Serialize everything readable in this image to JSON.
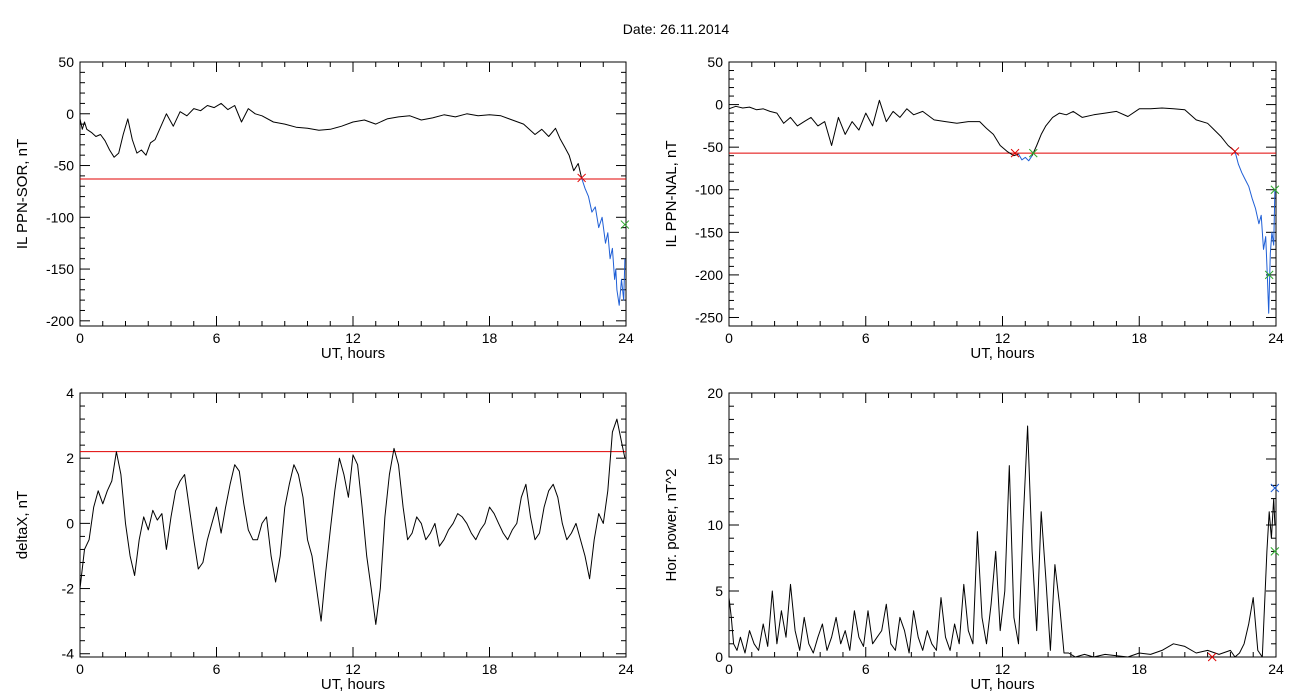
{
  "figure": {
    "title": "Date:  26.11.2014"
  },
  "chart_data": [
    {
      "id": "il-sor",
      "type": "line",
      "xlabel": "UT, hours",
      "ylabel": "IL PPN-SOR, nT",
      "xlim": [
        0,
        24
      ],
      "ylim": [
        -205,
        50
      ],
      "xticks": [
        0,
        6,
        12,
        18,
        24
      ],
      "yticks": [
        -200,
        -150,
        -100,
        -50,
        0,
        50
      ],
      "threshold": {
        "value": -63,
        "color": "#e00000"
      },
      "series": [
        {
          "color": "#000000",
          "x": [
            0,
            0.1,
            0.2,
            0.3,
            0.5,
            0.7,
            0.9,
            1.1,
            1.3,
            1.5,
            1.7,
            1.9,
            2.1,
            2.3,
            2.5,
            2.7,
            2.9,
            3.1,
            3.3,
            3.5,
            3.8,
            4.1,
            4.4,
            4.7,
            5,
            5.3,
            5.6,
            5.9,
            6.2,
            6.5,
            6.8,
            7.1,
            7.4,
            7.7,
            8,
            8.5,
            9,
            9.5,
            10,
            10.5,
            11,
            11.5,
            12,
            12.5,
            13,
            13.5,
            14,
            14.5,
            15,
            15.5,
            16,
            16.5,
            17,
            17.5,
            18,
            18.5,
            19,
            19.5,
            20,
            20.3,
            20.6,
            20.9,
            21.1,
            21.3,
            21.5,
            21.7,
            21.9,
            22.05
          ],
          "y": [
            -5,
            -15,
            -8,
            -15,
            -18,
            -22,
            -20,
            -26,
            -35,
            -42,
            -38,
            -20,
            -5,
            -25,
            -38,
            -35,
            -40,
            -28,
            -25,
            -15,
            0,
            -12,
            2,
            -2,
            5,
            3,
            8,
            6,
            10,
            4,
            8,
            -8,
            5,
            0,
            -2,
            -8,
            -10,
            -13,
            -14,
            -16,
            -15,
            -12,
            -8,
            -6,
            -10,
            -5,
            -3,
            -2,
            -6,
            -4,
            -1,
            -3,
            0,
            -2,
            -1,
            -2,
            -6,
            -10,
            -20,
            -15,
            -22,
            -14,
            -24,
            -32,
            -40,
            -55,
            -48,
            -62
          ]
        },
        {
          "color": "#1f5fd6",
          "x": [
            22.05,
            22.2,
            22.35,
            22.5,
            22.65,
            22.8,
            22.95,
            23.1,
            23.2,
            23.3,
            23.4,
            23.5,
            23.55,
            23.6,
            23.7,
            23.8,
            23.9,
            23.95
          ],
          "y": [
            -62,
            -72,
            -80,
            -95,
            -90,
            -110,
            -100,
            -125,
            -115,
            -140,
            -130,
            -160,
            -150,
            -170,
            -185,
            -160,
            -180,
            -140
          ]
        }
      ],
      "markers": [
        {
          "x": 22.05,
          "y": -62,
          "color": "#e00000"
        },
        {
          "x": 23.95,
          "y": -107,
          "color": "#2ea82e"
        }
      ]
    },
    {
      "id": "il-nal",
      "type": "line",
      "xlabel": "UT, hours",
      "ylabel": "IL PPN-NAL, nT",
      "xlim": [
        0,
        24
      ],
      "ylim": [
        -260,
        50
      ],
      "xticks": [
        0,
        6,
        12,
        18,
        24
      ],
      "yticks": [
        -250,
        -200,
        -150,
        -100,
        -50,
        0,
        50
      ],
      "threshold": {
        "value": -57,
        "color": "#e00000"
      },
      "series": [
        {
          "color": "#000000",
          "x": [
            0,
            0.3,
            0.6,
            0.9,
            1.2,
            1.5,
            1.8,
            2.1,
            2.4,
            2.7,
            3,
            3.3,
            3.6,
            3.9,
            4.2,
            4.5,
            4.8,
            5.1,
            5.4,
            5.7,
            6,
            6.3,
            6.6,
            6.9,
            7.2,
            7.5,
            7.8,
            8.1,
            8.5,
            9,
            9.5,
            10,
            10.5,
            11,
            11.3,
            11.6,
            11.9,
            12.2,
            12.5,
            12.7
          ],
          "y": [
            -5,
            -2,
            -4,
            -3,
            -6,
            -5,
            -8,
            -10,
            -22,
            -15,
            -25,
            -20,
            -15,
            -25,
            -20,
            -48,
            -15,
            -35,
            -20,
            -30,
            -10,
            -25,
            5,
            -20,
            -8,
            -15,
            -5,
            -12,
            -8,
            -18,
            -20,
            -22,
            -20,
            -20,
            -28,
            -35,
            -48,
            -55,
            -60,
            -58
          ]
        },
        {
          "color": "#1f5fd6",
          "x": [
            12.7,
            12.85,
            13.0,
            13.15,
            13.3
          ],
          "y": [
            -58,
            -65,
            -62,
            -66,
            -60
          ]
        },
        {
          "color": "#000000",
          "x": [
            13.3,
            13.5,
            13.7,
            13.9,
            14.2,
            14.5,
            14.8,
            15.1,
            15.5,
            16,
            16.5,
            17,
            17.5,
            18,
            18.5,
            19,
            19.5,
            20,
            20.5,
            21,
            21.3,
            21.6,
            21.9,
            22.2
          ],
          "y": [
            -60,
            -48,
            -35,
            -25,
            -15,
            -10,
            -12,
            -8,
            -15,
            -12,
            -10,
            -8,
            -14,
            -5,
            -5,
            -4,
            -5,
            -6,
            -18,
            -22,
            -30,
            -38,
            -48,
            -55
          ]
        },
        {
          "color": "#1f5fd6",
          "x": [
            22.2,
            22.35,
            22.5,
            22.65,
            22.8,
            22.95,
            23.1,
            23.25,
            23.35,
            23.45,
            23.55,
            23.62,
            23.68,
            23.75,
            23.82,
            23.9,
            23.95
          ],
          "y": [
            -55,
            -70,
            -80,
            -88,
            -96,
            -110,
            -122,
            -140,
            -130,
            -170,
            -155,
            -200,
            -245,
            -175,
            -150,
            -165,
            -100
          ]
        }
      ],
      "markers": [
        {
          "x": 12.55,
          "y": -57,
          "color": "#e00000"
        },
        {
          "x": 13.35,
          "y": -57,
          "color": "#2ea82e"
        },
        {
          "x": 22.2,
          "y": -55,
          "color": "#e00000"
        },
        {
          "x": 23.95,
          "y": -100,
          "color": "#2ea82e"
        },
        {
          "x": 23.7,
          "y": -200,
          "color": "#2ea82e"
        }
      ]
    },
    {
      "id": "deltax",
      "type": "line",
      "xlabel": "UT, hours",
      "ylabel": "deltaX, nT",
      "xlim": [
        0,
        24
      ],
      "ylim": [
        -4.1,
        4
      ],
      "xticks": [
        0,
        6,
        12,
        18,
        24
      ],
      "yticks": [
        -4,
        -2,
        0,
        2,
        4
      ],
      "threshold": {
        "value": 2.2,
        "color": "#e00000"
      },
      "series": [
        {
          "color": "#000000",
          "x": [
            0,
            0.2,
            0.4,
            0.6,
            0.8,
            1.0,
            1.2,
            1.4,
            1.6,
            1.8,
            2.0,
            2.2,
            2.4,
            2.6,
            2.8,
            3.0,
            3.2,
            3.4,
            3.6,
            3.8,
            4.0,
            4.2,
            4.4,
            4.6,
            4.8,
            5.0,
            5.2,
            5.4,
            5.6,
            5.8,
            6.0,
            6.2,
            6.4,
            6.6,
            6.8,
            7.0,
            7.2,
            7.4,
            7.6,
            7.8,
            8.0,
            8.2,
            8.4,
            8.6,
            8.8,
            9.0,
            9.2,
            9.4,
            9.6,
            9.8,
            10.0,
            10.2,
            10.4,
            10.6,
            10.8,
            11.0,
            11.2,
            11.4,
            11.6,
            11.8,
            12.0,
            12.2,
            12.4,
            12.6,
            12.8,
            13.0,
            13.2,
            13.4,
            13.6,
            13.8,
            14.0,
            14.2,
            14.4,
            14.6,
            14.8,
            15.0,
            15.2,
            15.4,
            15.6,
            15.8,
            16.0,
            16.2,
            16.4,
            16.6,
            16.8,
            17.0,
            17.2,
            17.4,
            17.6,
            17.8,
            18.0,
            18.2,
            18.4,
            18.6,
            18.8,
            19.0,
            19.2,
            19.4,
            19.6,
            19.8,
            20.0,
            20.2,
            20.4,
            20.6,
            20.8,
            21.0,
            21.2,
            21.4,
            21.6,
            21.8,
            22.0,
            22.2,
            22.4,
            22.6,
            22.8,
            23.0,
            23.2,
            23.4,
            23.6,
            23.8,
            23.95
          ],
          "y": [
            -2.0,
            -0.8,
            -0.5,
            0.5,
            1.0,
            0.6,
            1.0,
            1.3,
            2.2,
            1.5,
            0.0,
            -1.0,
            -1.6,
            -0.5,
            0.2,
            -0.2,
            0.4,
            0.1,
            0.3,
            -0.8,
            0.2,
            1.0,
            1.3,
            1.5,
            0.5,
            -0.5,
            -1.4,
            -1.2,
            -0.5,
            0.0,
            0.5,
            -0.3,
            0.5,
            1.2,
            1.8,
            1.6,
            0.6,
            -0.2,
            -0.5,
            -0.5,
            0.0,
            0.2,
            -1.0,
            -1.8,
            -1.0,
            0.5,
            1.2,
            1.8,
            1.5,
            0.8,
            -0.5,
            -1.0,
            -2.0,
            -3.0,
            -1.5,
            -0.2,
            1.0,
            2.0,
            1.5,
            0.8,
            2.1,
            1.8,
            0.5,
            -1.0,
            -2.0,
            -3.1,
            -2.0,
            0.2,
            1.5,
            2.3,
            1.8,
            0.5,
            -0.5,
            -0.3,
            0.2,
            0.0,
            -0.5,
            -0.3,
            0.0,
            -0.7,
            -0.5,
            -0.2,
            0.0,
            0.3,
            0.2,
            0.0,
            -0.3,
            -0.5,
            -0.2,
            0.0,
            0.5,
            0.3,
            0.0,
            -0.3,
            -0.5,
            -0.2,
            0.0,
            0.8,
            1.2,
            0.2,
            -0.5,
            -0.3,
            0.5,
            1.0,
            1.2,
            0.8,
            0.0,
            -0.5,
            -0.3,
            0.0,
            -0.5,
            -1.0,
            -1.7,
            -0.5,
            0.3,
            0.0,
            1.0,
            2.8,
            3.2,
            2.5,
            2.0
          ]
        }
      ],
      "markers": []
    },
    {
      "id": "hor-power",
      "type": "line",
      "xlabel": "UT, hours",
      "ylabel": "Hor. power, nT^2",
      "xlim": [
        0,
        24
      ],
      "ylim": [
        0,
        20
      ],
      "xticks": [
        0,
        6,
        12,
        18,
        24
      ],
      "yticks": [
        0,
        5,
        10,
        15,
        20
      ],
      "threshold": null,
      "series": [
        {
          "color": "#000000",
          "x": [
            0,
            0.1,
            0.2,
            0.35,
            0.5,
            0.7,
            0.9,
            1.1,
            1.3,
            1.5,
            1.7,
            1.9,
            2.1,
            2.3,
            2.5,
            2.7,
            2.9,
            3.1,
            3.3,
            3.5,
            3.7,
            3.9,
            4.1,
            4.3,
            4.5,
            4.7,
            4.9,
            5.1,
            5.3,
            5.5,
            5.7,
            5.9,
            6.1,
            6.3,
            6.5,
            6.7,
            6.9,
            7.1,
            7.3,
            7.5,
            7.7,
            7.9,
            8.1,
            8.3,
            8.5,
            8.7,
            8.9,
            9.1,
            9.3,
            9.5,
            9.7,
            9.9,
            10.1,
            10.3,
            10.5,
            10.7,
            10.9,
            11.1,
            11.3,
            11.5,
            11.7,
            11.9,
            12.1,
            12.3,
            12.5,
            12.7,
            12.9,
            13.1,
            13.3,
            13.5,
            13.7,
            13.9,
            14.1,
            14.3,
            14.5,
            14.7,
            14.9,
            15.2,
            15.6,
            16,
            16.5,
            17,
            17.5,
            18,
            18.5,
            19,
            19.5,
            20,
            20.5,
            21,
            21.5,
            22,
            22.2,
            22.4,
            22.6,
            22.8,
            23.0,
            23.2,
            23.4,
            23.6,
            23.7,
            23.8,
            23.9,
            23.95
          ],
          "y": [
            4.5,
            3.0,
            1.0,
            0.5,
            1.5,
            0.3,
            2.0,
            1.0,
            0.5,
            2.5,
            0.8,
            5.0,
            1.0,
            3.5,
            1.5,
            5.5,
            2.0,
            0.5,
            3.0,
            1.0,
            0.3,
            1.5,
            2.5,
            0.5,
            1.5,
            3.0,
            1.0,
            2.0,
            0.5,
            3.5,
            1.5,
            0.8,
            3.5,
            1.0,
            1.5,
            2.0,
            4.0,
            1.0,
            0.5,
            3.0,
            2.0,
            0.3,
            3.5,
            1.5,
            0.5,
            2.0,
            1.0,
            0.5,
            4.5,
            1.5,
            0.5,
            2.5,
            1.0,
            5.5,
            2.0,
            1.0,
            9.5,
            3.0,
            1.0,
            4.0,
            8.0,
            2.0,
            5.0,
            14.5,
            3.0,
            1.0,
            10.0,
            17.5,
            8.0,
            2.0,
            11.0,
            6.0,
            0.5,
            7.0,
            4.0,
            0.3,
            0.3,
            0.0,
            0.2,
            0.0,
            0.2,
            0.1,
            0.0,
            0.3,
            0.2,
            0.5,
            1.0,
            0.8,
            0.3,
            0.5,
            0.2,
            0.5,
            0.0,
            0.3,
            1.0,
            2.5,
            4.5,
            0.5,
            0.0,
            8.0,
            11.0,
            9.0,
            12.0,
            10.0
          ]
        }
      ],
      "markers": [
        {
          "x": 23.95,
          "y": 12.8,
          "color": "#1f5fd6"
        },
        {
          "x": 23.95,
          "y": 8.0,
          "color": "#2ea82e"
        },
        {
          "x": 21.2,
          "y": 0.0,
          "color": "#e00000"
        }
      ]
    }
  ]
}
